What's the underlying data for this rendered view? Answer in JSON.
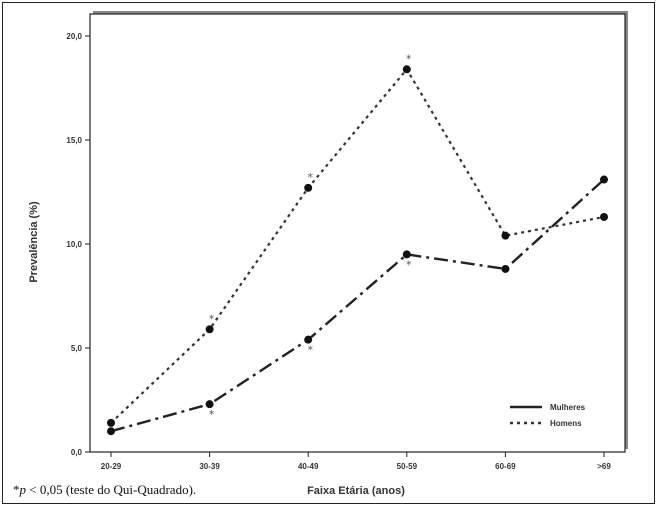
{
  "chart_data": {
    "type": "line",
    "xlabel": "Faixa Etária (anos)",
    "ylabel": "Prevalência (%)",
    "categories": [
      "20-29",
      "30-39",
      "40-49",
      "50-59",
      "60-69",
      ">69"
    ],
    "ylim": [
      0,
      20
    ],
    "yticks": [
      "0,0",
      "5,0",
      "10,0",
      "15,0",
      "20,0"
    ],
    "yticks_values": [
      0,
      5,
      10,
      15,
      20
    ],
    "grid": false,
    "legend_position": "bottom-right",
    "series": [
      {
        "name": "Mulheres",
        "values": [
          1.0,
          2.3,
          5.4,
          9.5,
          8.8,
          13.1
        ],
        "style": "dash-dot",
        "color": "#222222"
      },
      {
        "name": "Homens",
        "values": [
          1.4,
          5.9,
          12.7,
          18.4,
          10.4,
          11.3
        ],
        "style": "dotted",
        "color": "#333333"
      }
    ],
    "significance_markers": [
      {
        "category": "30-39",
        "series": "Homens",
        "label": "*"
      },
      {
        "category": "30-39",
        "series": "Mulheres",
        "label": "*"
      },
      {
        "category": "40-49",
        "series": "Homens",
        "label": "*"
      },
      {
        "category": "40-49",
        "series": "Mulheres",
        "label": "*"
      },
      {
        "category": "50-59",
        "series": "Homens",
        "label": "*"
      },
      {
        "category": "50-59",
        "series": "Mulheres",
        "label": "*"
      }
    ]
  },
  "footnote": {
    "star": "*",
    "p": "p",
    "rest": " < 0,05 (teste do Qui-Quadrado)."
  }
}
